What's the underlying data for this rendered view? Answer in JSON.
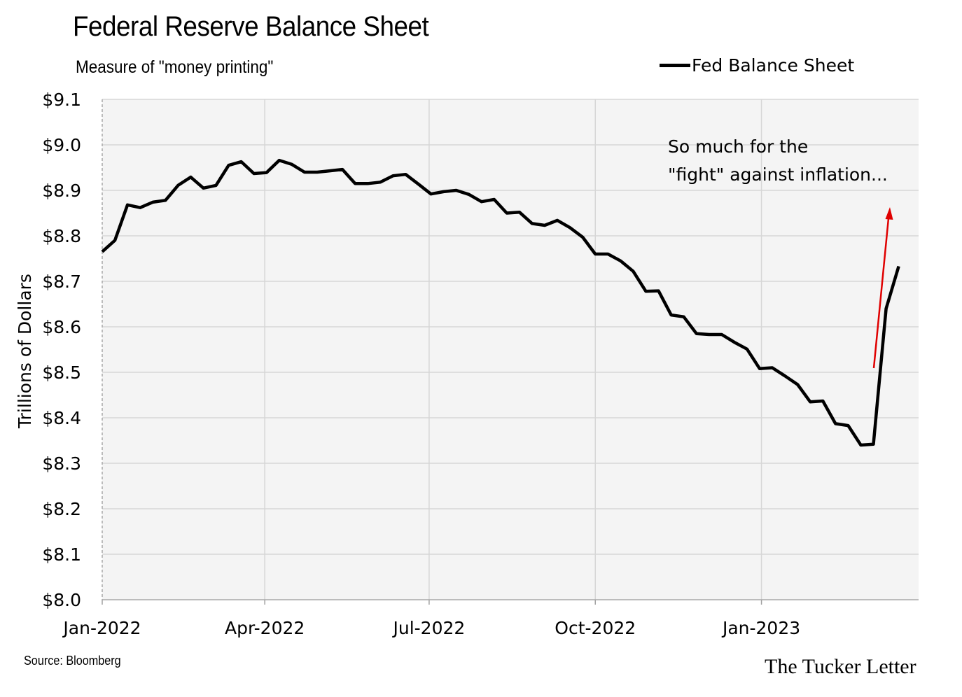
{
  "chart_data": {
    "type": "line",
    "title": "Federal Reserve Balance Sheet",
    "subtitle": "Measure of \"money printing\"",
    "ylabel": "Trillions of Dollars",
    "xlabel": "",
    "ylim": [
      8.0,
      9.1
    ],
    "y_ticks": [
      8.0,
      8.1,
      8.2,
      8.3,
      8.4,
      8.5,
      8.6,
      8.7,
      8.8,
      8.9,
      9.0,
      9.1
    ],
    "y_tick_labels": [
      "$8.0",
      "$8.1",
      "$8.2",
      "$8.3",
      "$8.4",
      "$8.5",
      "$8.6",
      "$8.7",
      "$8.8",
      "$8.9",
      "$9.0",
      "$9.1"
    ],
    "x_ticks": [
      "2022-01-01",
      "2022-04-01",
      "2022-07-01",
      "2022-10-01",
      "2023-01-01"
    ],
    "x_tick_labels": [
      "Jan-2022",
      "Apr-2022",
      "Jul-2022",
      "Oct-2022",
      "Jan-2023"
    ],
    "x_range": [
      "2022-01-01",
      "2023-03-29"
    ],
    "grid": "vertical lines at x ticks, horizontal lines at y ticks",
    "legend_position": "top-right",
    "series": [
      {
        "name": "Fed Balance Sheet",
        "color": "#000000",
        "points": [
          [
            "2022-01-01",
            8.765
          ],
          [
            "2022-01-08",
            8.79
          ],
          [
            "2022-01-15",
            8.868
          ],
          [
            "2022-01-22",
            8.862
          ],
          [
            "2022-01-29",
            8.874
          ],
          [
            "2022-02-05",
            8.878
          ],
          [
            "2022-02-12",
            8.911
          ],
          [
            "2022-02-19",
            8.929
          ],
          [
            "2022-02-26",
            8.905
          ],
          [
            "2022-03-05",
            8.911
          ],
          [
            "2022-03-12",
            8.955
          ],
          [
            "2022-03-19",
            8.963
          ],
          [
            "2022-03-26",
            8.937
          ],
          [
            "2022-04-02",
            8.939
          ],
          [
            "2022-04-09",
            8.966
          ],
          [
            "2022-04-16",
            8.957
          ],
          [
            "2022-04-23",
            8.94
          ],
          [
            "2022-04-30",
            8.94
          ],
          [
            "2022-05-07",
            8.943
          ],
          [
            "2022-05-14",
            8.946
          ],
          [
            "2022-05-21",
            8.915
          ],
          [
            "2022-05-28",
            8.915
          ],
          [
            "2022-06-04",
            8.918
          ],
          [
            "2022-06-11",
            8.932
          ],
          [
            "2022-06-18",
            8.935
          ],
          [
            "2022-06-25",
            8.914
          ],
          [
            "2022-07-02",
            8.892
          ],
          [
            "2022-07-09",
            8.897
          ],
          [
            "2022-07-16",
            8.9
          ],
          [
            "2022-07-23",
            8.891
          ],
          [
            "2022-07-30",
            8.875
          ],
          [
            "2022-08-06",
            8.88
          ],
          [
            "2022-08-13",
            8.85
          ],
          [
            "2022-08-20",
            8.852
          ],
          [
            "2022-08-27",
            8.827
          ],
          [
            "2022-09-03",
            8.823
          ],
          [
            "2022-09-10",
            8.834
          ],
          [
            "2022-09-17",
            8.818
          ],
          [
            "2022-09-24",
            8.797
          ],
          [
            "2022-10-01",
            8.76
          ],
          [
            "2022-10-08",
            8.76
          ],
          [
            "2022-10-15",
            8.745
          ],
          [
            "2022-10-22",
            8.722
          ],
          [
            "2022-10-29",
            8.678
          ],
          [
            "2022-11-05",
            8.679
          ],
          [
            "2022-11-12",
            8.626
          ],
          [
            "2022-11-19",
            8.622
          ],
          [
            "2022-11-26",
            8.585
          ],
          [
            "2022-12-03",
            8.583
          ],
          [
            "2022-12-10",
            8.583
          ],
          [
            "2022-12-17",
            8.566
          ],
          [
            "2022-12-24",
            8.551
          ],
          [
            "2022-12-31",
            8.508
          ],
          [
            "2023-01-07",
            8.51
          ],
          [
            "2023-01-14",
            8.492
          ],
          [
            "2023-01-21",
            8.473
          ],
          [
            "2023-01-28",
            8.435
          ],
          [
            "2023-02-04",
            8.437
          ],
          [
            "2023-02-11",
            8.387
          ],
          [
            "2023-02-18",
            8.383
          ],
          [
            "2023-02-25",
            8.34
          ],
          [
            "2023-03-04",
            8.342
          ],
          [
            "2023-03-11",
            8.64
          ],
          [
            "2023-03-18",
            8.733
          ]
        ]
      }
    ],
    "annotations": [
      {
        "text": [
          "So much for the",
          "\"fight\" against inflation..."
        ],
        "arrow": "red upward arrow pointing at the final rise",
        "arrow_color": "#e00000"
      }
    ]
  },
  "footer": {
    "source": "Source: Bloomberg",
    "brand": "The Tucker Letter"
  }
}
